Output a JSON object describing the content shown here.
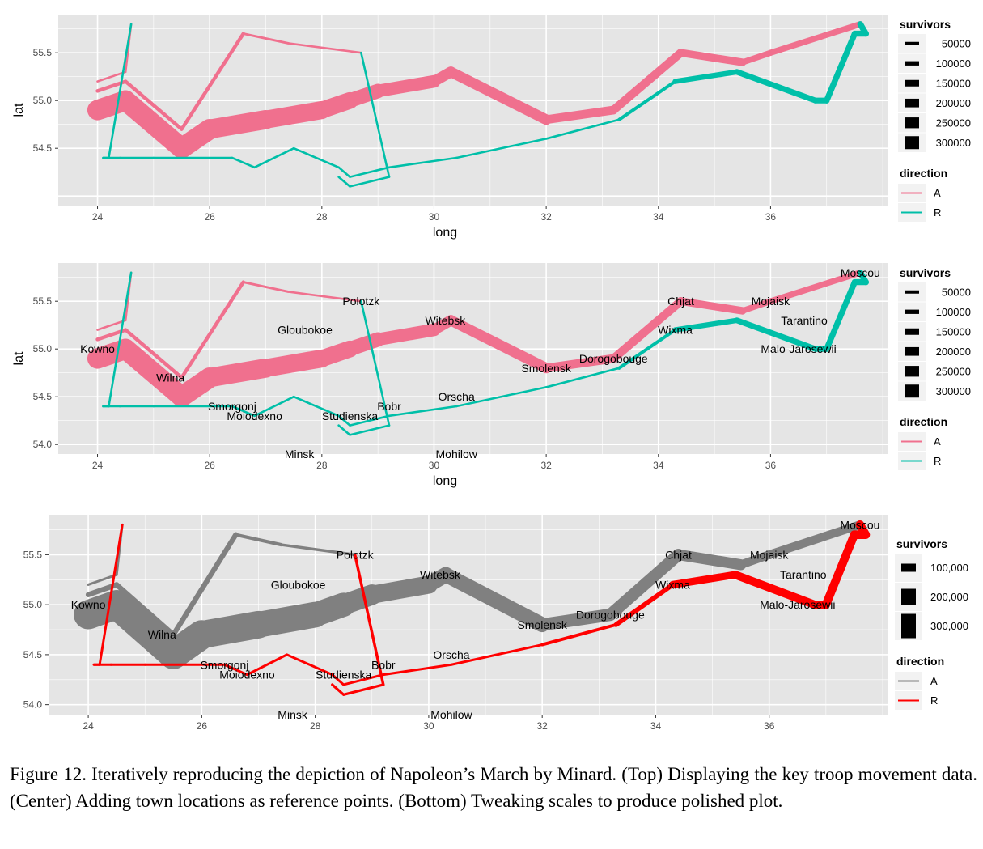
{
  "caption": "Figure 12.   Iteratively reproducing the depiction of Napoleon’s March by Minard. (Top) Displaying the key troop movement data. (Center) Adding town locations as reference points. (Bottom) Tweaking scales to produce polished plot.",
  "colors": {
    "panel_bg": "#e5e5e5",
    "grid": "#ffffff",
    "advance_default": "#f8766d",
    "advance_pink": "#f0708e",
    "retreat_default": "#00bfa8",
    "advance_grey": "#808080",
    "retreat_red": "#ff0000",
    "axis_text": "#4d4d4d"
  },
  "chart_data": [
    {
      "type": "line",
      "panel": "top",
      "xlabel": "long",
      "ylabel": "lat",
      "xlim": [
        23.3,
        38.1
      ],
      "ylim": [
        53.9,
        55.9
      ],
      "x_ticks": [
        24,
        26,
        28,
        30,
        32,
        34,
        36
      ],
      "y_ticks": [
        54.5,
        55.0,
        55.5
      ],
      "y_tick_labels": [
        "54.5",
        "55.0",
        "55.5"
      ],
      "grid": true,
      "show_cities": false,
      "legend": {
        "placement": "right",
        "size_title": "survivors",
        "size_labels": [
          "50000",
          "100000",
          "150000",
          "200000",
          "250000",
          "300000"
        ],
        "size_values": [
          50000,
          100000,
          150000,
          200000,
          250000,
          300000
        ],
        "color_title": "direction",
        "color_labels": [
          "A",
          "R"
        ]
      }
    },
    {
      "type": "line",
      "panel": "center",
      "xlabel": "long",
      "ylabel": "lat",
      "xlim": [
        23.3,
        38.1
      ],
      "ylim": [
        53.9,
        55.9
      ],
      "x_ticks": [
        24,
        26,
        28,
        30,
        32,
        34,
        36
      ],
      "y_ticks": [
        54.0,
        54.5,
        55.0,
        55.5
      ],
      "y_tick_labels": [
        "54.0",
        "54.5",
        "55.0",
        "55.5"
      ],
      "grid": true,
      "show_cities": true,
      "legend": {
        "placement": "right",
        "size_title": "survivors",
        "size_labels": [
          "50000",
          "100000",
          "150000",
          "200000",
          "250000",
          "300000"
        ],
        "size_values": [
          50000,
          100000,
          150000,
          200000,
          250000,
          300000
        ],
        "color_title": "direction",
        "color_labels": [
          "A",
          "R"
        ]
      }
    },
    {
      "type": "line",
      "panel": "bottom",
      "xlabel": "",
      "ylabel": "",
      "xlim": [
        23.3,
        38.1
      ],
      "ylim": [
        53.9,
        55.9
      ],
      "x_ticks": [
        24,
        26,
        28,
        30,
        32,
        34,
        36
      ],
      "y_ticks": [
        54.0,
        54.5,
        55.0,
        55.5
      ],
      "y_tick_labels": [
        "54.0",
        "54.5",
        "55.0",
        "55.5"
      ],
      "grid": true,
      "show_cities": true,
      "legend": {
        "placement": "right",
        "size_title": "survivors",
        "size_labels": [
          "100,000",
          "200,000",
          "300,000"
        ],
        "size_values": [
          100000,
          200000,
          300000
        ],
        "color_title": "direction",
        "color_labels": [
          "A",
          "R"
        ]
      }
    }
  ],
  "troops": [
    {
      "group": 1,
      "direction": "A",
      "points": [
        [
          24.0,
          54.9,
          340000
        ],
        [
          24.5,
          55.0,
          340000
        ],
        [
          25.5,
          54.5,
          340000
        ],
        [
          26.0,
          54.7,
          320000
        ],
        [
          27.0,
          54.8,
          300000
        ],
        [
          28.0,
          54.9,
          280000
        ],
        [
          28.5,
          55.0,
          240000
        ],
        [
          29.0,
          55.1,
          210000
        ],
        [
          30.0,
          55.2,
          180000
        ],
        [
          30.3,
          55.3,
          175000
        ],
        [
          32.0,
          54.8,
          145000
        ],
        [
          33.2,
          54.9,
          140000
        ],
        [
          34.4,
          55.5,
          127100
        ],
        [
          35.5,
          55.4,
          100000
        ],
        [
          36.0,
          55.5,
          100000
        ],
        [
          37.6,
          55.8,
          100000
        ]
      ]
    },
    {
      "group": 1,
      "direction": "R",
      "points": [
        [
          37.6,
          55.8,
          100000
        ],
        [
          37.7,
          55.7,
          100000
        ],
        [
          37.5,
          55.7,
          98000
        ],
        [
          37.0,
          55.0,
          97000
        ],
        [
          36.8,
          55.0,
          96000
        ],
        [
          35.4,
          55.3,
          87000
        ],
        [
          34.3,
          55.2,
          55000
        ],
        [
          33.3,
          54.8,
          37000
        ],
        [
          32.0,
          54.6,
          24000
        ],
        [
          30.4,
          54.4,
          20000
        ],
        [
          29.2,
          54.3,
          20000
        ],
        [
          28.5,
          54.2,
          20000
        ],
        [
          28.3,
          54.3,
          20000
        ],
        [
          27.5,
          54.5,
          20000
        ],
        [
          26.8,
          54.3,
          12000
        ],
        [
          26.4,
          54.4,
          14000
        ],
        [
          25.0,
          54.4,
          8000
        ],
        [
          24.4,
          54.4,
          4000
        ],
        [
          24.2,
          54.4,
          4000
        ],
        [
          24.1,
          54.4,
          4000
        ]
      ]
    },
    {
      "group": 2,
      "direction": "A",
      "points": [
        [
          24.0,
          55.1,
          60000
        ],
        [
          24.5,
          55.2,
          60000
        ],
        [
          25.5,
          54.7,
          60000
        ],
        [
          26.6,
          55.7,
          40000
        ],
        [
          27.4,
          55.6,
          33000
        ],
        [
          28.7,
          55.5,
          33000
        ]
      ]
    },
    {
      "group": 2,
      "direction": "R",
      "points": [
        [
          28.7,
          55.5,
          33000
        ],
        [
          29.2,
          54.2,
          30000
        ],
        [
          28.5,
          54.1,
          30000
        ],
        [
          28.3,
          54.2,
          28000
        ]
      ]
    },
    {
      "group": 3,
      "direction": "A",
      "points": [
        [
          24.0,
          55.2,
          22000
        ],
        [
          24.5,
          55.3,
          22000
        ],
        [
          24.6,
          55.8,
          6000
        ]
      ]
    },
    {
      "group": 3,
      "direction": "R",
      "points": [
        [
          24.6,
          55.8,
          6000
        ],
        [
          24.2,
          54.4,
          6000
        ],
        [
          24.1,
          54.4,
          6000
        ]
      ]
    }
  ],
  "cities": [
    {
      "name": "Kowno",
      "long": 24.0,
      "lat": 55.0
    },
    {
      "name": "Wilna",
      "long": 25.3,
      "lat": 54.7
    },
    {
      "name": "Smorgonj",
      "long": 26.4,
      "lat": 54.4
    },
    {
      "name": "Moiodexno",
      "long": 26.8,
      "lat": 54.3
    },
    {
      "name": "Gloubokoe",
      "long": 27.7,
      "lat": 55.2
    },
    {
      "name": "Minsk",
      "long": 27.6,
      "lat": 53.9
    },
    {
      "name": "Studienska",
      "long": 28.5,
      "lat": 54.3
    },
    {
      "name": "Polotzk",
      "long": 28.7,
      "lat": 55.5
    },
    {
      "name": "Bobr",
      "long": 29.2,
      "lat": 54.4
    },
    {
      "name": "Witebsk",
      "long": 30.2,
      "lat": 55.3
    },
    {
      "name": "Orscha",
      "long": 30.4,
      "lat": 54.5
    },
    {
      "name": "Mohilow",
      "long": 30.4,
      "lat": 53.9
    },
    {
      "name": "Smolensk",
      "long": 32.0,
      "lat": 54.8
    },
    {
      "name": "Dorogobouge",
      "long": 33.2,
      "lat": 54.9
    },
    {
      "name": "Wixma",
      "long": 34.3,
      "lat": 55.2
    },
    {
      "name": "Chjat",
      "long": 34.4,
      "lat": 55.5
    },
    {
      "name": "Mojaisk",
      "long": 36.0,
      "lat": 55.5
    },
    {
      "name": "Moscou",
      "long": 37.6,
      "lat": 55.8
    },
    {
      "name": "Tarantino",
      "long": 36.6,
      "lat": 55.3
    },
    {
      "name": "Malo-Jarosewii",
      "long": 36.5,
      "lat": 55.0
    }
  ]
}
